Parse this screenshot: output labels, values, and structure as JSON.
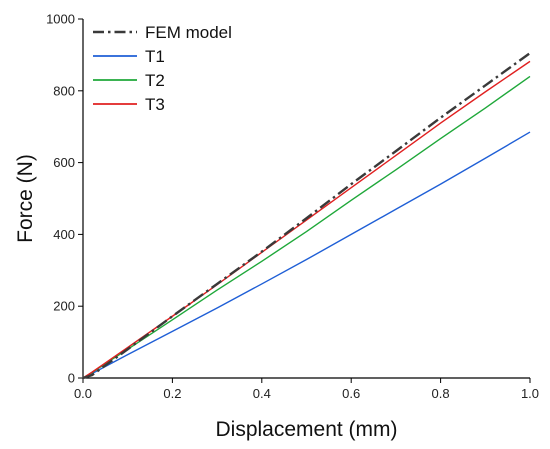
{
  "chart_data": {
    "type": "line",
    "title": "",
    "xlabel": "Displacement (mm)",
    "ylabel": "Force (N)",
    "xlim": [
      0.0,
      1.0
    ],
    "ylim": [
      0,
      1000
    ],
    "x_ticks": [
      "0.0",
      "0.2",
      "0.4",
      "0.6",
      "0.8",
      "1.0"
    ],
    "y_ticks": [
      "0",
      "200",
      "400",
      "600",
      "800",
      "1000"
    ],
    "grid": false,
    "legend_position": "top-left",
    "series": [
      {
        "name": "FEM model",
        "color": "#3a3a3a",
        "line_style": "dash-dot",
        "x": [
          0.0,
          0.02,
          0.05,
          0.1,
          0.2,
          0.3,
          0.4,
          0.5,
          0.6,
          0.7,
          0.8,
          0.9,
          1.0
        ],
        "y": [
          0,
          8,
          35,
          80,
          172,
          262,
          352,
          445,
          540,
          632,
          725,
          815,
          905
        ]
      },
      {
        "name": "T1",
        "color": "#1f5fd6",
        "line_style": "solid",
        "x": [
          0.0,
          0.02,
          0.05,
          0.1,
          0.2,
          0.3,
          0.4,
          0.5,
          0.6,
          0.7,
          0.8,
          0.9,
          1.0
        ],
        "y": [
          0,
          12,
          32,
          65,
          130,
          195,
          262,
          330,
          400,
          470,
          540,
          612,
          685
        ]
      },
      {
        "name": "T2",
        "color": "#1fa83a",
        "line_style": "solid",
        "x": [
          0.0,
          0.02,
          0.05,
          0.1,
          0.2,
          0.3,
          0.4,
          0.5,
          0.6,
          0.7,
          0.8,
          0.9,
          1.0
        ],
        "y": [
          0,
          15,
          40,
          80,
          162,
          245,
          325,
          408,
          495,
          580,
          667,
          752,
          840
        ]
      },
      {
        "name": "T3",
        "color": "#e02020",
        "line_style": "solid",
        "x": [
          0.0,
          0.02,
          0.05,
          0.1,
          0.2,
          0.3,
          0.4,
          0.5,
          0.6,
          0.7,
          0.8,
          0.9,
          1.0
        ],
        "y": [
          0,
          16,
          42,
          85,
          172,
          260,
          350,
          440,
          530,
          620,
          710,
          797,
          882
        ]
      }
    ]
  }
}
